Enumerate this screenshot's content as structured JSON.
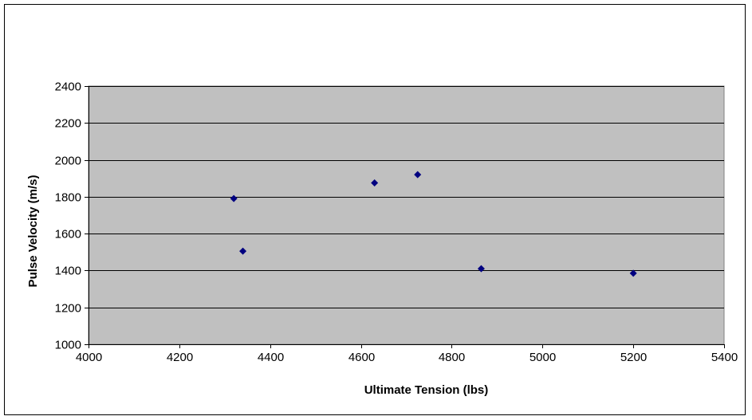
{
  "chart_data": {
    "type": "scatter",
    "title": "",
    "xlabel": "Ultimate Tension (lbs)",
    "ylabel": "Pulse Velocity (m/s)",
    "xlim": [
      4000,
      5400
    ],
    "ylim": [
      1000,
      2400
    ],
    "x_ticks": [
      4000,
      4200,
      4400,
      4600,
      4800,
      5000,
      5200,
      5400
    ],
    "y_ticks": [
      1000,
      1200,
      1400,
      1600,
      1800,
      2000,
      2200,
      2400
    ],
    "grid": {
      "horizontal": true,
      "vertical": false
    },
    "legend": "none",
    "colors": {
      "plot_background": "#c0c0c0",
      "marker": "#000080",
      "gridline": "#000000"
    },
    "series": [
      {
        "points": [
          {
            "x": 4320,
            "y": 1790
          },
          {
            "x": 4340,
            "y": 1505
          },
          {
            "x": 4630,
            "y": 1875
          },
          {
            "x": 4725,
            "y": 1920
          },
          {
            "x": 4865,
            "y": 1410
          },
          {
            "x": 5200,
            "y": 1385
          }
        ]
      }
    ]
  }
}
